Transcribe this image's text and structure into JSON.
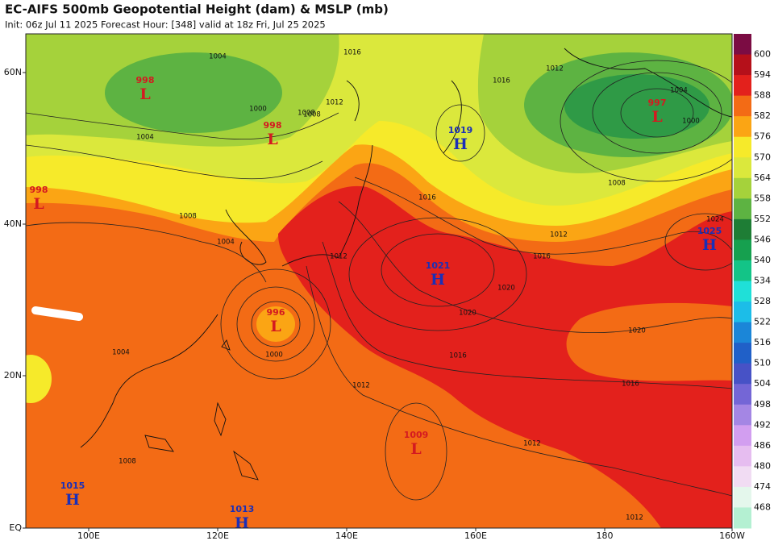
{
  "header": {
    "title": "EC-AIFS 500mb Geopotential Height (dam) & MSLP (mb)",
    "subtitle": "Init: 06z Jul 11 2025   Forecast Hour: [348]   valid at 18z Fri, Jul 25 2025"
  },
  "axes": {
    "lat_labels": [
      "60N",
      "40N",
      "20N",
      "EQ"
    ],
    "lon_labels": [
      "100E",
      "120E",
      "140E",
      "160E",
      "180",
      "160W"
    ]
  },
  "colorbar": {
    "levels": [
      600,
      594,
      588,
      582,
      576,
      570,
      564,
      558,
      552,
      546,
      540,
      534,
      528,
      522,
      516,
      510,
      504,
      498,
      492,
      486,
      480,
      474,
      468
    ],
    "colors": [
      "#7b0c43",
      "#b5101a",
      "#e3211c",
      "#f36b15",
      "#fba514",
      "#f6ea2a",
      "#dbe83c",
      "#a5d23b",
      "#5db342",
      "#1e7d35",
      "#16a04f",
      "#13c487",
      "#1fe0d8",
      "#1cbde8",
      "#1b86d8",
      "#2060c8",
      "#4752c6",
      "#7466d6",
      "#a486e4",
      "#d29ef0",
      "#e6bdf0",
      "#f1dcf3",
      "#e4f7ec",
      "#b4f0d2"
    ]
  },
  "centers": [
    {
      "type": "L",
      "value": 998
    },
    {
      "type": "L",
      "value": 998
    },
    {
      "type": "L",
      "value": 997
    },
    {
      "type": "L",
      "value": 996
    },
    {
      "type": "L",
      "value": 1009
    },
    {
      "type": "L",
      "value": 998
    },
    {
      "type": "H",
      "value": 1019
    },
    {
      "type": "H",
      "value": 1021
    },
    {
      "type": "H",
      "value": 1025
    },
    {
      "type": "H",
      "value": 1015
    },
    {
      "type": "H",
      "value": 1013
    }
  ],
  "isobar_labels": [
    1004,
    1000,
    1008,
    1004,
    1016,
    1012,
    1008,
    1016,
    1012,
    1016,
    1020,
    1020,
    1016,
    1012,
    1012,
    1012,
    1000,
    1008,
    1004,
    1004,
    1024,
    1016,
    1020,
    1012,
    1008,
    1004,
    1016,
    1000,
    1008,
    1012
  ]
}
